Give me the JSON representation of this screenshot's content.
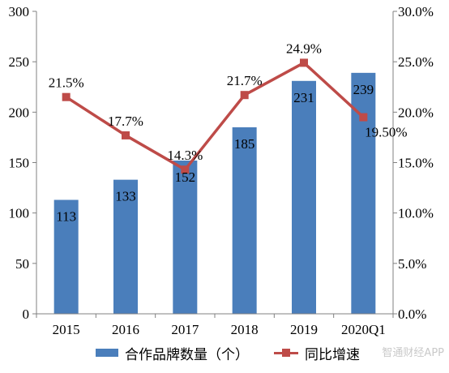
{
  "chart_data": {
    "type": "bar",
    "categories": [
      "2015",
      "2016",
      "2017",
      "2018",
      "2019",
      "2020Q1"
    ],
    "series": [
      {
        "name": "合作品牌数量（个）",
        "type": "bar",
        "axis": "left",
        "values": [
          113,
          133,
          152,
          185,
          231,
          239
        ],
        "labels": [
          "113",
          "133",
          "152",
          "185",
          "231",
          "239"
        ]
      },
      {
        "name": "同比增速",
        "type": "line",
        "axis": "right",
        "values": [
          21.5,
          17.7,
          14.3,
          21.7,
          24.9,
          19.5
        ],
        "labels": [
          "21.5%",
          "17.7%",
          "14.3%",
          "21.7%",
          "24.9%",
          "19.50%"
        ]
      }
    ],
    "y_left": {
      "range": [
        0,
        300
      ],
      "ticks": [
        "0",
        "50",
        "100",
        "150",
        "200",
        "250",
        "300"
      ]
    },
    "y_right": {
      "range": [
        0,
        30
      ],
      "ticks": [
        "0.0%",
        "5.0%",
        "10.0%",
        "15.0%",
        "20.0%",
        "25.0%",
        "30.0%"
      ]
    },
    "legend_position": "bottom",
    "grid": false,
    "colors": {
      "bar": "#4a7ebb",
      "line": "#be4b48"
    }
  },
  "watermark": "智通财经APP"
}
